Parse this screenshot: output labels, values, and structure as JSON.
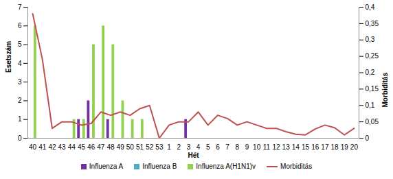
{
  "chart_data": {
    "type": "bar",
    "x_label": "Hét",
    "y_label": "Esetszám",
    "y2_label": "Morbiditás",
    "categories": [
      40,
      41,
      42,
      43,
      44,
      45,
      46,
      47,
      48,
      49,
      50,
      51,
      52,
      53,
      1,
      2,
      3,
      4,
      5,
      6,
      7,
      8,
      9,
      10,
      11,
      12,
      13,
      14,
      15,
      16,
      17,
      18,
      19,
      20
    ],
    "ylim": [
      0,
      7
    ],
    "yticks": [
      0,
      1,
      2,
      3,
      4,
      5,
      6,
      7
    ],
    "y2lim": [
      0,
      0.4
    ],
    "y2ticks": [
      0,
      {
        "value": 0.05,
        "label": "0,05"
      },
      {
        "value": 0.1,
        "label": "0,1"
      },
      {
        "value": 0.15,
        "label": "0,15"
      },
      {
        "value": 0.2,
        "label": "0,2"
      },
      {
        "value": 0.25,
        "label": "0,25"
      },
      {
        "value": 0.3,
        "label": "0,3"
      },
      {
        "value": 0.35,
        "label": "0,35"
      },
      {
        "value": 0.4,
        "label": "0,4"
      }
    ],
    "grid": false,
    "legend": "bottom",
    "series": [
      {
        "name": "Influenza A",
        "color": "#7030a0",
        "type": "bar",
        "values": [
          0,
          0,
          0,
          0,
          0,
          1,
          2,
          0,
          1,
          0,
          0,
          0,
          0,
          0,
          0,
          0,
          1,
          0,
          0,
          0,
          0,
          0,
          0,
          0,
          0,
          0,
          0,
          0,
          0,
          0,
          0,
          0,
          0,
          0
        ]
      },
      {
        "name": "Influenza B",
        "color": "#4bacc6",
        "type": "bar",
        "values": [
          0,
          0,
          0,
          0,
          0,
          0,
          0,
          0,
          0,
          0,
          0,
          0,
          0,
          0,
          0,
          0,
          0,
          0,
          0,
          0,
          0,
          0,
          0,
          0,
          0,
          0,
          0,
          0,
          0,
          0,
          0,
          0,
          0,
          0
        ]
      },
      {
        "name": "Influenza A(H1N1)v",
        "color": "#92d050",
        "type": "bar",
        "values": [
          6,
          0,
          0,
          0,
          1,
          1,
          5,
          6,
          5,
          2,
          1,
          1,
          0,
          0,
          0,
          0,
          0,
          0,
          0,
          0,
          0,
          0,
          0,
          0,
          0,
          0,
          0,
          0,
          0,
          0,
          0,
          0,
          0,
          0
        ]
      },
      {
        "name": "Morbiditás",
        "color": "#c0504d",
        "type": "line",
        "axis": "y2",
        "values": [
          0.38,
          0.24,
          0.03,
          0.05,
          0.05,
          0.04,
          0.045,
          0.08,
          0.07,
          0.08,
          0.07,
          0.09,
          0.1,
          0.0,
          0.04,
          0.05,
          0.05,
          0.08,
          0.04,
          0.07,
          0.06,
          0.04,
          0.05,
          0.04,
          0.03,
          0.03,
          0.02,
          0.012,
          0.01,
          0.028,
          0.04,
          0.032,
          0.01,
          0.03
        ]
      }
    ]
  }
}
